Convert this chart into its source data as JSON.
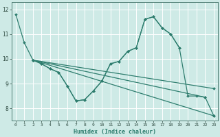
{
  "xlabel": "Humidex (Indice chaleur)",
  "xlim": [
    -0.5,
    23.5
  ],
  "ylim": [
    7.5,
    12.3
  ],
  "yticks": [
    8,
    9,
    10,
    11,
    12
  ],
  "xticks": [
    0,
    1,
    2,
    3,
    4,
    5,
    6,
    7,
    8,
    9,
    10,
    11,
    12,
    13,
    14,
    15,
    16,
    17,
    18,
    19,
    20,
    21,
    22,
    23
  ],
  "bg_color": "#ceeae6",
  "grid_color": "#ffffff",
  "line_color": "#2e7d6e",
  "curve1_x": [
    0,
    1,
    2,
    3,
    4,
    5,
    6,
    7,
    8,
    9,
    10,
    11,
    12,
    13,
    14,
    15,
    16,
    17,
    18,
    19
  ],
  "curve1_y": [
    11.8,
    10.65,
    9.95,
    9.8,
    9.6,
    9.45,
    8.9,
    8.3,
    8.35,
    8.7,
    9.1,
    9.8,
    9.9,
    10.3,
    10.45,
    11.6,
    11.7,
    11.25,
    11.0,
    10.45
  ],
  "curve2_x": [
    2,
    3,
    4,
    5,
    6,
    7,
    8,
    9,
    10,
    11,
    12,
    13,
    14,
    15,
    16,
    17,
    18,
    19,
    20,
    21,
    22,
    23
  ],
  "curve2_y": [
    9.95,
    9.8,
    9.6,
    9.45,
    8.9,
    8.3,
    8.35,
    8.7,
    9.1,
    9.8,
    9.9,
    10.3,
    10.45,
    11.6,
    11.7,
    11.25,
    11.0,
    10.45,
    8.5,
    8.5,
    8.45,
    7.7
  ],
  "line1_x": [
    2,
    23
  ],
  "line1_y": [
    9.95,
    7.7
  ],
  "line2_x": [
    2,
    23
  ],
  "line2_y": [
    9.95,
    8.8
  ],
  "line3_x": [
    2,
    22
  ],
  "line3_y": [
    9.95,
    8.45
  ],
  "marker": "D",
  "markersize": 2.0,
  "linewidth": 0.9
}
